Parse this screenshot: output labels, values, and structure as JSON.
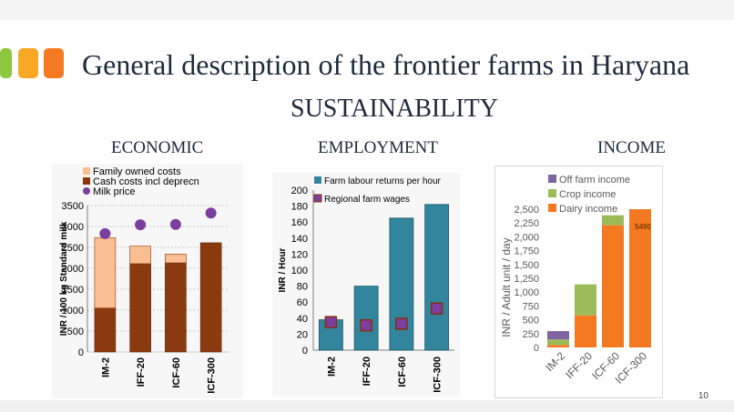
{
  "slide": {
    "title": "General description of the frontier farms in Haryana",
    "subtitle": "SUSTAINABILITY",
    "page_number": "10",
    "accent_colors": [
      "#8dc63f",
      "#f9a825",
      "#f47920"
    ]
  },
  "sections": {
    "economic": "ECONOMIC",
    "employment": "EMPLOYMENT",
    "income": "INCOME"
  },
  "chart_data": [
    {
      "type": "bar",
      "stacked": true,
      "title": "",
      "ylabel": "INR / 100 kg Standard milk",
      "ylim": [
        0,
        3500
      ],
      "yticks": [
        "0",
        "500",
        "1000",
        "1500",
        "2000",
        "2500",
        "3000",
        "3500"
      ],
      "categories": [
        "IM-2",
        "IFF-20",
        "ICF-60",
        "ICF-300"
      ],
      "series": [
        {
          "name": "Family owned costs",
          "kind": "bar",
          "color": "#f9bf93",
          "values": [
            1680,
            420,
            210,
            0
          ]
        },
        {
          "name": "Cash costs incl deprecn",
          "kind": "bar",
          "color": "#8b3a0f",
          "values": [
            1050,
            2110,
            2130,
            2610
          ]
        },
        {
          "name": "Milk price",
          "kind": "point",
          "color": "#7b3fa0",
          "values": [
            2830,
            3040,
            3050,
            3320
          ]
        }
      ],
      "legend": "top-left",
      "grid": true
    },
    {
      "type": "bar",
      "title": "",
      "ylabel": "INR / Hour",
      "ylim": [
        0,
        200
      ],
      "yticks": [
        "0",
        "20",
        "40",
        "60",
        "80",
        "100",
        "120",
        "140",
        "160",
        "180",
        "200"
      ],
      "categories": [
        "IM-2",
        "IFF-20",
        "ICF-60",
        "ICF-300"
      ],
      "series": [
        {
          "name": "Farm labour returns per hour",
          "kind": "bar",
          "color": "#31859c",
          "values": [
            38,
            80,
            165,
            182
          ]
        },
        {
          "name": "Regional farm wages",
          "kind": "point",
          "color": "#7b3fa0",
          "values": [
            35,
            31,
            33,
            52
          ]
        }
      ],
      "legend": "top-left",
      "grid": false
    },
    {
      "type": "bar",
      "stacked": true,
      "title": "",
      "ylabel": "INR / Adult unit / day",
      "ylim": [
        0,
        2500
      ],
      "yticks": [
        "0",
        "250",
        "500",
        "750",
        "1,000",
        "1,250",
        "1,500",
        "1,750",
        "2,000",
        "2,250",
        "2,500"
      ],
      "categories": [
        "IM-2",
        "IFF-20",
        "ICF-60",
        "ICF-300"
      ],
      "series": [
        {
          "name": "Dairy income",
          "kind": "bar",
          "color": "#f47920",
          "values": [
            45,
            580,
            2210,
            2500
          ]
        },
        {
          "name": "Crop income",
          "kind": "bar",
          "color": "#9bbb59",
          "values": [
            100,
            560,
            180,
            0
          ]
        },
        {
          "name": "Off farm income",
          "kind": "bar",
          "color": "#8064a2",
          "values": [
            150,
            0,
            0,
            0
          ]
        }
      ],
      "legend_order": [
        "Off farm income",
        "Crop income",
        "Dairy income"
      ],
      "annotations": [
        {
          "category": "ICF-300",
          "text": "5490"
        }
      ],
      "legend": "top-left",
      "grid": false
    }
  ]
}
